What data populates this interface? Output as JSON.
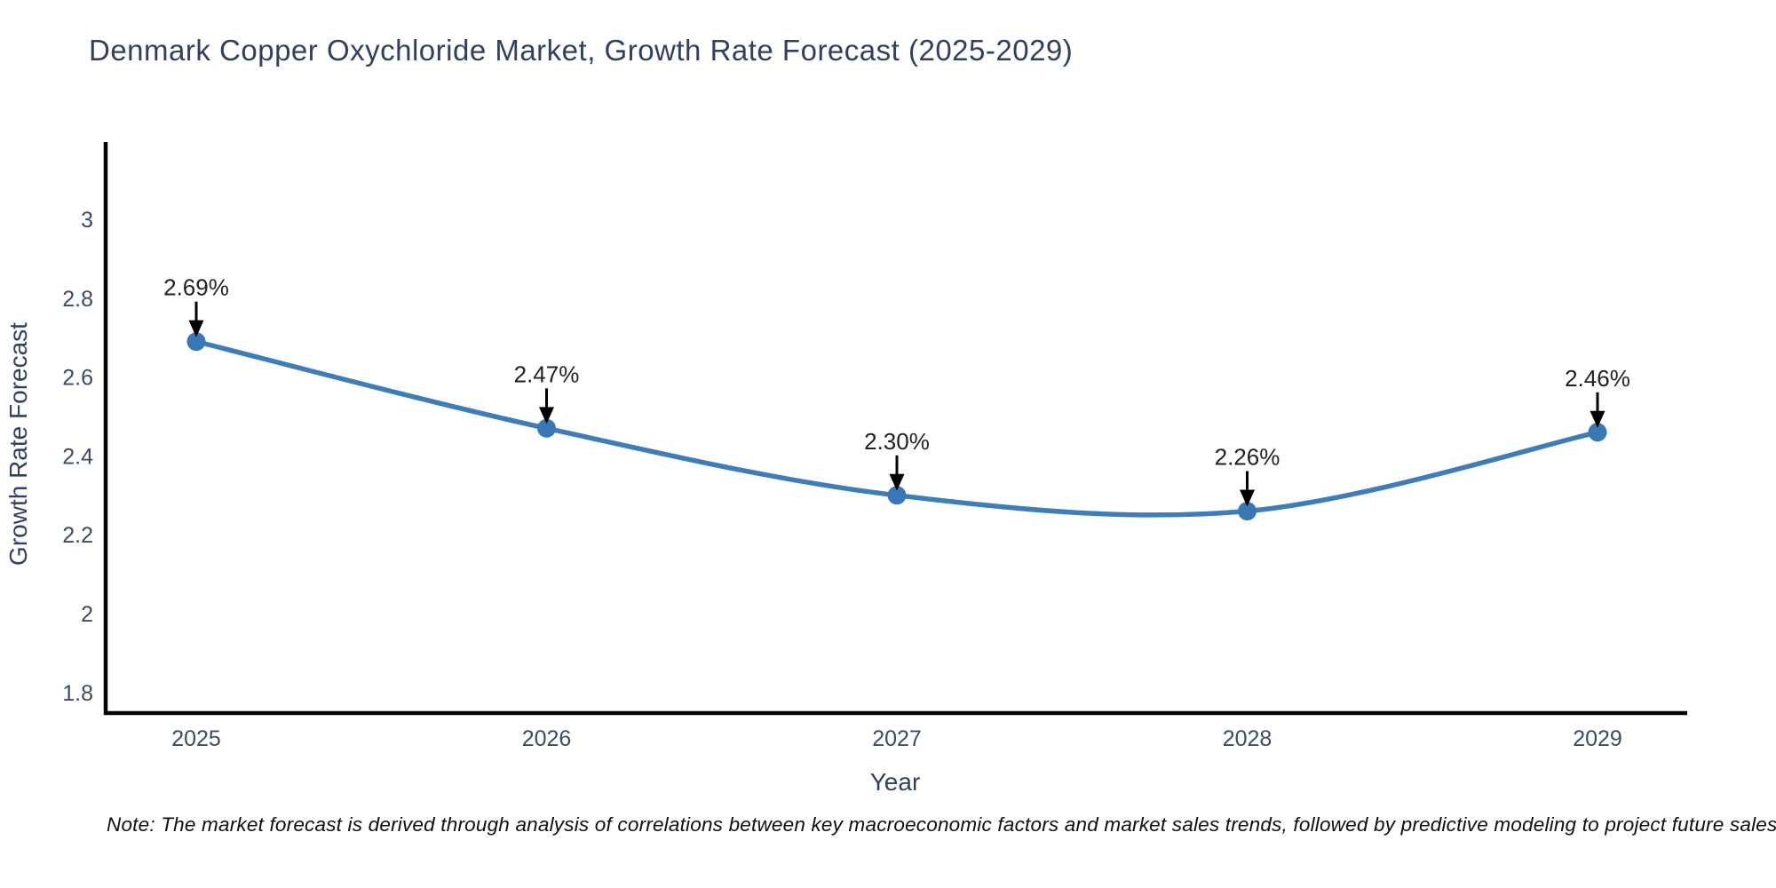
{
  "page": {
    "title": "Denmark Copper Oxychloride Market, Growth Rate Forecast (2025-2029)",
    "note": "Note: The market forecast is derived through analysis of correlations between key macroeconomic factors and market sales trends, followed by predictive modeling to project future sales"
  },
  "chart_data": {
    "type": "line",
    "title": "Denmark Copper Oxychloride Market, Growth Rate Forecast (2025-2029)",
    "line_shape": "spline",
    "markers": true,
    "grid": false,
    "legend": "none",
    "x": [
      2025,
      2026,
      2027,
      2028,
      2029
    ],
    "xticklabels": [
      "2025",
      "2026",
      "2027",
      "2028",
      "2029"
    ],
    "series": [
      {
        "name": "Growth Rate Forecast",
        "values": [
          2.69,
          2.47,
          2.3,
          2.26,
          2.46
        ]
      }
    ],
    "point_labels": [
      "2.69%",
      "2.47%",
      "2.30%",
      "2.26%",
      "2.46%"
    ],
    "xlabel": "Year",
    "ylabel": "Growth Rate Forecast",
    "ytick_labels": [
      "1.8",
      "2",
      "2.2",
      "2.4",
      "2.6",
      "2.8",
      "3"
    ],
    "ytick_values": [
      1.8,
      2.0,
      2.2,
      2.4,
      2.6,
      2.8,
      3.0
    ],
    "ylim": [
      1.75,
      3.19
    ],
    "xlim": [
      2024.73,
      2029.27
    ],
    "colors": {
      "line": "#3e7db7",
      "marker": "#3a78b5",
      "axis": "#000000",
      "arrow": "#000000",
      "annotation_text": "#222222",
      "tick_text": "#3d4a66",
      "axis_title_text": "#32405f",
      "title_text": "#32405f",
      "note_text": "#0f0f0f",
      "background": "#ffffff"
    }
  }
}
